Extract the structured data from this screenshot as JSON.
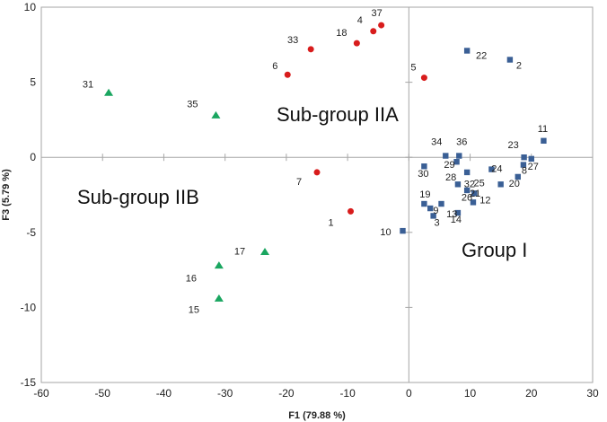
{
  "chart_data": {
    "type": "scatter",
    "title": "",
    "xlabel": "F1 (79.88 %)",
    "ylabel": "F3 (5.79 %)",
    "xlim": [
      -60,
      30
    ],
    "ylim": [
      -15,
      10
    ],
    "xticks": [
      -60,
      -50,
      -40,
      -30,
      -20,
      -10,
      0,
      10,
      20,
      30
    ],
    "yticks": [
      -15,
      -10,
      -5,
      0,
      5,
      10
    ],
    "xtick_labels": [
      "-60",
      "-50",
      "-40",
      "-30",
      "-20",
      "-10",
      "0",
      "10",
      "20",
      "30"
    ],
    "ytick_labels": [
      "-15",
      "-10",
      "-5",
      "0",
      "5",
      "10"
    ],
    "grid": false,
    "legend": "none",
    "series": [
      {
        "marker": "square",
        "color": "#3a5f95",
        "points": [
          {
            "label": "22",
            "x": 9.5,
            "y": 7.1
          },
          {
            "label": "2",
            "x": 16.5,
            "y": 6.5
          },
          {
            "label": "11",
            "x": 22.0,
            "y": 1.1
          },
          {
            "label": "23",
            "x": 18.8,
            "y": 0.0
          },
          {
            "label": "27",
            "x": 20.0,
            "y": -0.1
          },
          {
            "label": "8",
            "x": 18.7,
            "y": -0.5
          },
          {
            "label": "20",
            "x": 17.8,
            "y": -1.3
          },
          {
            "label": "34",
            "x": 6.0,
            "y": 0.1
          },
          {
            "label": "36",
            "x": 8.2,
            "y": 0.1
          },
          {
            "label": "30",
            "x": 2.5,
            "y": -0.6
          },
          {
            "label": "29",
            "x": 7.8,
            "y": -0.3
          },
          {
            "label": "24",
            "x": 13.5,
            "y": -0.8
          },
          {
            "label": "28",
            "x": 9.5,
            "y": -1.0
          },
          {
            "label": "32",
            "x": 8.0,
            "y": -1.8
          },
          {
            "label": "21",
            "x": 9.5,
            "y": -2.2
          },
          {
            "label": "12",
            "x": 10.7,
            "y": -2.4
          },
          {
            "label": "25",
            "x": 15.0,
            "y": -1.8
          },
          {
            "label": "26",
            "x": 10.5,
            "y": -3.0
          },
          {
            "label": "19",
            "x": 2.5,
            "y": -3.1
          },
          {
            "label": "9",
            "x": 5.3,
            "y": -3.1
          },
          {
            "label": "13",
            "x": 3.5,
            "y": -3.4
          },
          {
            "label": "14",
            "x": 8.0,
            "y": -3.7
          },
          {
            "label": "3",
            "x": 4.0,
            "y": -3.9
          },
          {
            "label": "10",
            "x": -1.0,
            "y": -4.9
          }
        ]
      },
      {
        "marker": "circle",
        "color": "#d81c1c",
        "points": [
          {
            "label": "37",
            "x": -4.5,
            "y": 8.8
          },
          {
            "label": "4",
            "x": -5.8,
            "y": 8.4
          },
          {
            "label": "18",
            "x": -8.5,
            "y": 7.6
          },
          {
            "label": "33",
            "x": -16.0,
            "y": 7.2
          },
          {
            "label": "6",
            "x": -19.8,
            "y": 5.5
          },
          {
            "label": "5",
            "x": 2.5,
            "y": 5.3
          },
          {
            "label": "7",
            "x": -15.0,
            "y": -1.0
          },
          {
            "label": "1",
            "x": -9.5,
            "y": -3.6
          }
        ]
      },
      {
        "marker": "triangle",
        "color": "#1aa660",
        "points": [
          {
            "label": "31",
            "x": -49.0,
            "y": 4.3
          },
          {
            "label": "35",
            "x": -31.5,
            "y": 2.8
          },
          {
            "label": "17",
            "x": -23.5,
            "y": -6.3
          },
          {
            "label": "16",
            "x": -31.0,
            "y": -7.2
          },
          {
            "label": "15",
            "x": -31.0,
            "y": -9.4
          }
        ]
      }
    ],
    "annotations": [
      "Sub-group IIA",
      "Sub-group IIB",
      "Group I"
    ]
  }
}
